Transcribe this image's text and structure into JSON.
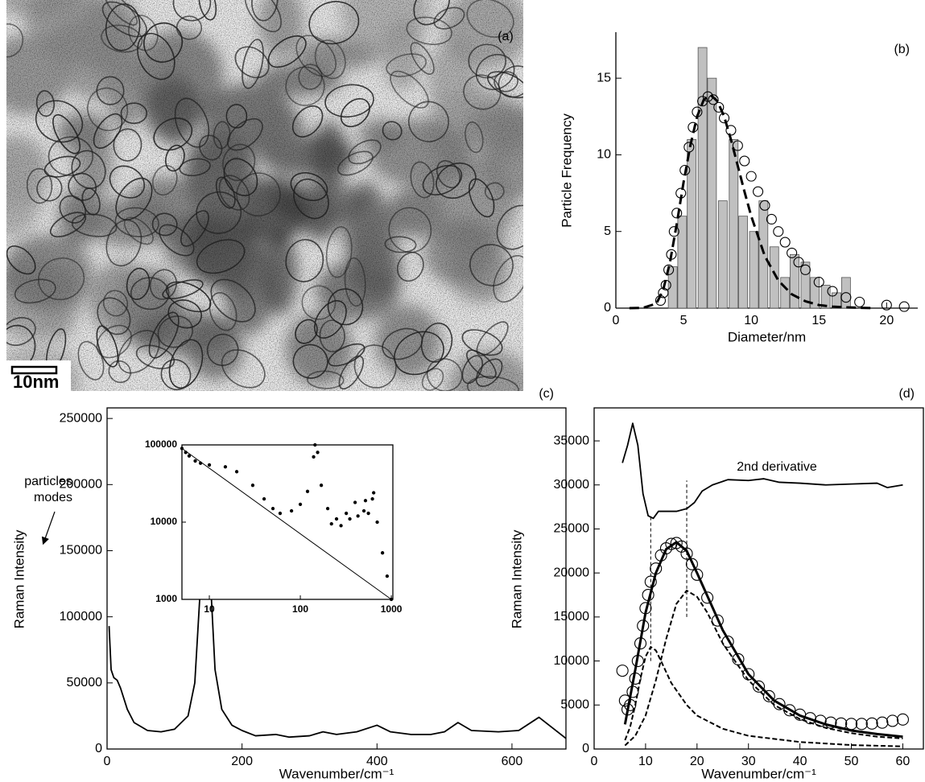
{
  "image": {
    "label": "(a)",
    "scale_bar": "10nm"
  },
  "chart_data": [
    {
      "type": "combo",
      "label": "(b)",
      "xlabel": "Diameter/nm",
      "ylabel": "Particle Frequency",
      "xlim": [
        0,
        22.3
      ],
      "ylim": [
        0,
        18
      ],
      "xticks": [
        0,
        5,
        10,
        15,
        20
      ],
      "yticks": [
        0,
        5,
        10,
        15
      ],
      "series": [
        {
          "style": "bar",
          "color": "#c0c0c0",
          "x": [
            4.2,
            4.9,
            5.6,
            6.4,
            7.1,
            7.9,
            8.7,
            9.4,
            10.2,
            10.9,
            11.7,
            12.5,
            13.2,
            14.0,
            14.7,
            15.5,
            16.3,
            17.0
          ],
          "values": [
            2.7,
            6,
            11,
            17,
            15,
            7,
            11,
            6,
            5,
            7,
            4,
            2,
            3.5,
            3,
            2,
            1.5,
            1,
            2
          ]
        },
        {
          "style": "circle",
          "color": "#000000",
          "x": [
            3.3,
            3.5,
            3.7,
            3.9,
            4.1,
            4.3,
            4.5,
            4.8,
            5.1,
            5.4,
            5.7,
            6.0,
            6.4,
            6.8,
            7.2,
            7.6,
            8.0,
            8.5,
            9.0,
            9.5,
            10,
            10.5,
            11,
            11.5,
            12,
            12.5,
            13,
            13.5,
            14,
            15,
            16,
            17,
            18,
            20,
            21.3
          ],
          "values": [
            0.5,
            1,
            1.5,
            2.5,
            3.5,
            5,
            6.2,
            7.5,
            9,
            10.5,
            11.8,
            12.8,
            13.5,
            13.8,
            13.6,
            13.1,
            12.4,
            11.6,
            10.6,
            9.6,
            8.6,
            7.6,
            6.7,
            5.8,
            5.0,
            4.3,
            3.6,
            3.0,
            2.5,
            1.7,
            1.1,
            0.7,
            0.4,
            0.2,
            0.1
          ]
        },
        {
          "style": "dashed",
          "color": "#000000",
          "x": [
            1,
            2,
            3,
            3.5,
            4,
            4.5,
            5,
            5.5,
            6,
            6.5,
            7,
            7.5,
            8,
            8.5,
            9,
            9.5,
            10,
            11,
            12,
            13,
            14,
            15,
            16,
            17,
            19
          ],
          "values": [
            0,
            0.02,
            0.3,
            1.2,
            3,
            5.5,
            8.2,
            10.6,
            12.5,
            13.6,
            13.9,
            13.5,
            12.5,
            11,
            9.3,
            7.6,
            6,
            3.4,
            1.8,
            0.9,
            0.45,
            0.2,
            0.1,
            0.05,
            0
          ]
        }
      ]
    },
    {
      "type": "line",
      "label": "(c)",
      "xlabel": "Wavenumber/cm⁻¹",
      "ylabel": "Raman Intensity",
      "annotation": [
        "particles",
        "modes"
      ],
      "xlim": [
        0,
        680
      ],
      "ylim": [
        0,
        258000
      ],
      "xticks": [
        0,
        200,
        400,
        600
      ],
      "yticks": [
        0,
        50000,
        100000,
        150000,
        200000,
        250000
      ],
      "series": [
        {
          "style": "solid",
          "color": "#000000",
          "x": [
            3,
            6,
            10,
            15,
            20,
            30,
            40,
            60,
            80,
            100,
            120,
            130,
            138,
            145,
            152,
            160,
            170,
            185,
            200,
            220,
            250,
            270,
            300,
            320,
            340,
            370,
            400,
            420,
            450,
            480,
            500,
            520,
            540,
            580,
            610,
            640,
            660,
            680
          ],
          "values": [
            93000,
            60000,
            54000,
            52000,
            46000,
            30000,
            20000,
            14000,
            13000,
            15000,
            25000,
            50000,
            120000,
            205000,
            140000,
            60000,
            30000,
            18000,
            14000,
            10000,
            11000,
            9000,
            10000,
            13000,
            11000,
            13000,
            18000,
            13000,
            11000,
            11000,
            13000,
            20000,
            14000,
            13000,
            14000,
            24000,
            16000,
            8000
          ]
        }
      ]
    },
    {
      "type": "scatter",
      "xscale": "log",
      "yscale": "log",
      "xlim": [
        5,
        1040
      ],
      "ylim": [
        1000,
        100000
      ],
      "xticks": [
        10,
        100,
        1000
      ],
      "yticks": [
        1000,
        10000,
        100000
      ],
      "series": [
        {
          "style": "dot",
          "color": "#000000",
          "x": [
            5,
            5.5,
            6,
            7,
            8,
            10,
            15,
            20,
            30,
            40,
            50,
            60,
            80,
            100,
            120,
            140,
            145,
            155,
            170,
            200,
            220,
            250,
            280,
            320,
            350,
            400,
            430,
            500,
            520,
            560,
            620,
            640,
            700,
            800,
            900,
            1000
          ],
          "values": [
            90000,
            80000,
            72000,
            62000,
            58000,
            55000,
            52000,
            45000,
            30000,
            20000,
            15000,
            13000,
            14000,
            17000,
            25000,
            70000,
            100000,
            80000,
            30000,
            15000,
            9500,
            11000,
            9000,
            13000,
            11000,
            18000,
            12000,
            14000,
            19000,
            13000,
            20000,
            24000,
            10000,
            4000,
            2000,
            1000
          ]
        },
        {
          "style": "solid",
          "color": "#000000",
          "x": [
            5,
            1000
          ],
          "values": [
            90000,
            1000
          ]
        }
      ]
    },
    {
      "type": "combo",
      "label": "(d)",
      "xlabel": "Wavenumber/cm⁻¹",
      "ylabel": "Raman Intensity",
      "annotation": "2nd derivative",
      "xlim": [
        0,
        64
      ],
      "ylim": [
        0,
        38750
      ],
      "xticks": [
        0,
        10,
        20,
        30,
        40,
        50,
        60
      ],
      "yticks": [
        0,
        5000,
        10000,
        15000,
        20000,
        25000,
        30000,
        35000
      ],
      "vlines": [
        {
          "x": 11,
          "y": [
            10000,
            26500
          ]
        },
        {
          "x": 18,
          "y": [
            15000,
            30500
          ]
        }
      ],
      "series": [
        {
          "style": "circle",
          "color": "#000000",
          "x": [
            5.5,
            6,
            6.5,
            7,
            7.5,
            8,
            8.5,
            9,
            9.5,
            10,
            10.5,
            11,
            12,
            13,
            14,
            15,
            16,
            17,
            18,
            19,
            20,
            22,
            24,
            26,
            28,
            30,
            32,
            34,
            36,
            38,
            40,
            42,
            44,
            46,
            48,
            50,
            52,
            54,
            56,
            58,
            60
          ],
          "values": [
            8900,
            5500,
            4500,
            5000,
            6500,
            8000,
            10000,
            12000,
            14000,
            16000,
            17500,
            19000,
            20500,
            22000,
            22800,
            23300,
            23400,
            23000,
            22200,
            21000,
            19800,
            17200,
            14600,
            12200,
            10200,
            8500,
            7100,
            6000,
            5100,
            4400,
            3900,
            3500,
            3200,
            3000,
            2900,
            2850,
            2850,
            2900,
            3000,
            3200,
            3350
          ]
        },
        {
          "style": "thick",
          "color": "#000000",
          "x": [
            6,
            8,
            10,
            12,
            14,
            16,
            18,
            20,
            25,
            30,
            35,
            40,
            45,
            50,
            55,
            60
          ],
          "values": [
            2800,
            9000,
            15500,
            20000,
            22700,
            23500,
            22500,
            20000,
            13500,
            8500,
            5500,
            3800,
            2800,
            2100,
            1700,
            1400
          ]
        },
        {
          "style": "dashed",
          "color": "#000000",
          "x": [
            6,
            8,
            10,
            12,
            14,
            16,
            18,
            20,
            22,
            25,
            30,
            35,
            40,
            45,
            50,
            55,
            60
          ],
          "values": [
            400,
            1500,
            3800,
            7800,
            12500,
            16500,
            18000,
            17300,
            15500,
            12000,
            7800,
            5000,
            3400,
            2400,
            1800,
            1400,
            1200
          ]
        },
        {
          "style": "dashed",
          "color": "#000000",
          "x": [
            6,
            7,
            8,
            9,
            10,
            11,
            12,
            13,
            15,
            18,
            20,
            25,
            30,
            40,
            50,
            60
          ],
          "values": [
            1000,
            2500,
            5000,
            8000,
            10500,
            11600,
            11200,
            10000,
            7500,
            5000,
            3800,
            2300,
            1500,
            800,
            450,
            300
          ]
        },
        {
          "style": "solid",
          "color": "#000000",
          "x": [
            5.5,
            6.5,
            7.5,
            8.5,
            9.5,
            10.5,
            11.5,
            12.5,
            14,
            16,
            18,
            19.5,
            21,
            23,
            26,
            30,
            33,
            36,
            40,
            45,
            50,
            55,
            57,
            60
          ],
          "values": [
            32500,
            34500,
            37000,
            34500,
            29000,
            26500,
            26200,
            27000,
            27000,
            27000,
            27300,
            28000,
            29300,
            30000,
            30600,
            30500,
            30700,
            30300,
            30200,
            30000,
            30100,
            30200,
            29700,
            30000
          ]
        }
      ]
    }
  ]
}
